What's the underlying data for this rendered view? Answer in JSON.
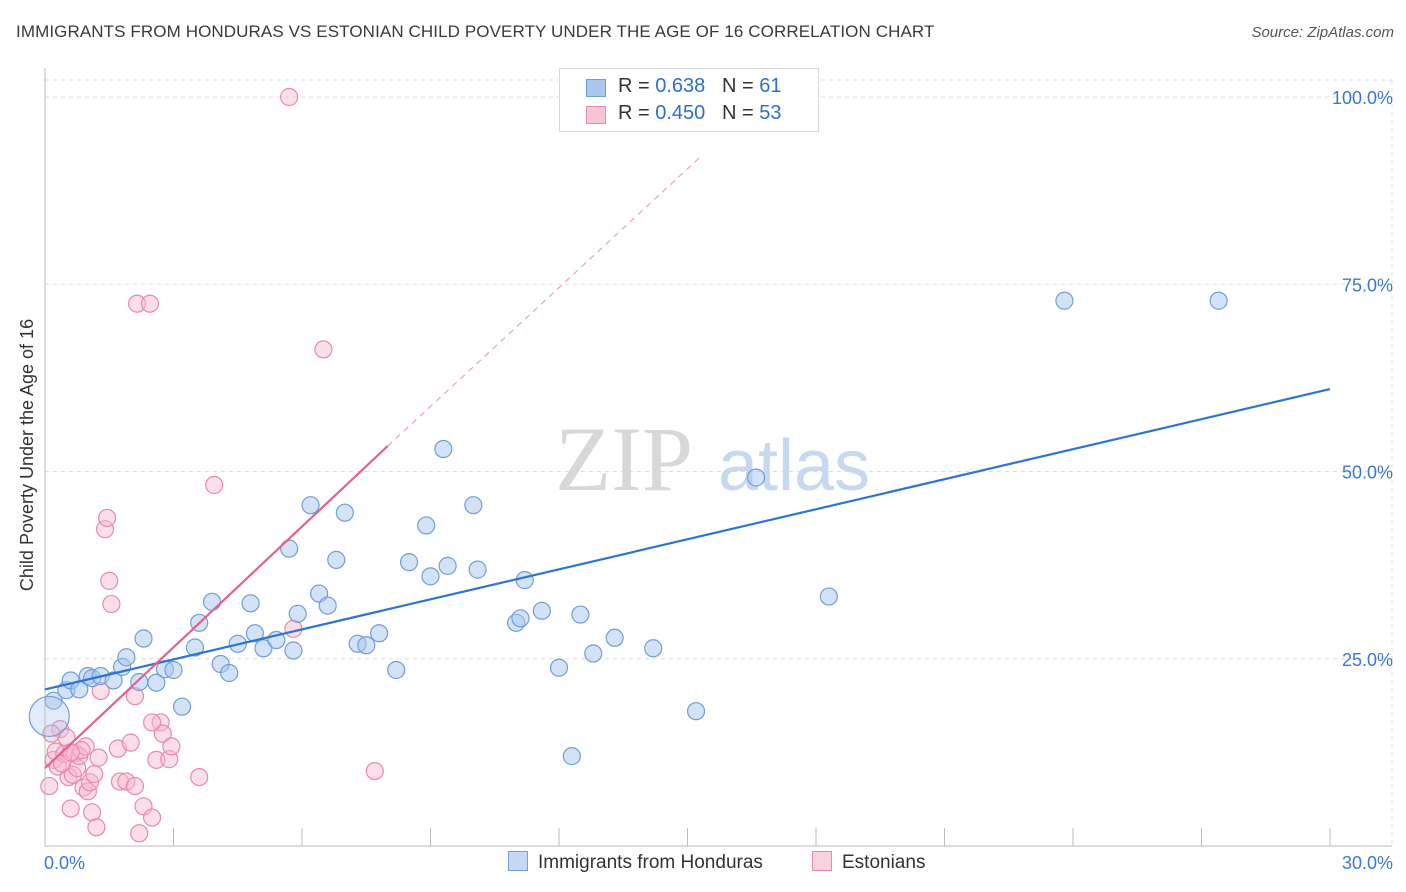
{
  "title": "IMMIGRANTS FROM HONDURAS VS ESTONIAN CHILD POVERTY UNDER THE AGE OF 16 CORRELATION CHART",
  "source": "Source: ZipAtlas.com",
  "watermark": {
    "zip": "ZIP",
    "atlas": "atlas"
  },
  "colors": {
    "blue_fill": "#aac6ee",
    "blue_stroke": "#6f9fd8",
    "blue_line": "#2e74d0",
    "pink_fill": "#f6b8cc",
    "pink_stroke": "#e98aa8",
    "pink_line": "#e4608e",
    "tick_label": "#3b78d6",
    "grid": "#dddddd"
  },
  "legend": {
    "rows": [
      {
        "r_label": "R = ",
        "r_value": "0.638",
        "n_label": "N = ",
        "n_value": "61"
      },
      {
        "r_label": "R = ",
        "r_value": "0.450",
        "n_label": "N = ",
        "n_value": "53"
      }
    ]
  },
  "bottom_legend": {
    "blue": "Immigrants from Honduras",
    "pink": "Estonians"
  },
  "chart_data": {
    "type": "scatter",
    "title": "IMMIGRANTS FROM HONDURAS VS ESTONIAN CHILD POVERTY UNDER THE AGE OF 16 CORRELATION CHART",
    "xlabel": "",
    "ylabel": "Child Poverty Under the Age of 16",
    "xlim": [
      0,
      30
    ],
    "ylim": [
      0,
      100
    ],
    "x_tick_labels": [
      "0.0%",
      "30.0%"
    ],
    "y_tick_values": [
      25,
      50,
      75,
      100
    ],
    "y_tick_labels": [
      "25.0%",
      "50.0%",
      "75.0%",
      "100.0%"
    ],
    "series": [
      {
        "name": "Immigrants from Honduras",
        "r": 0.638,
        "n": 61,
        "trend": {
          "x": [
            0,
            30
          ],
          "y": [
            20.9,
            61
          ]
        },
        "points": [
          [
            0.2,
            19.4
          ],
          [
            0.5,
            20.8
          ],
          [
            0.6,
            22.1
          ],
          [
            0.8,
            20.9
          ],
          [
            1.0,
            22.7
          ],
          [
            1.1,
            22.4
          ],
          [
            1.3,
            22.7
          ],
          [
            1.6,
            22.1
          ],
          [
            1.8,
            23.9
          ],
          [
            1.9,
            25.2
          ],
          [
            2.2,
            21.9
          ],
          [
            2.3,
            27.7
          ],
          [
            2.6,
            21.8
          ],
          [
            2.8,
            23.6
          ],
          [
            3.0,
            23.5
          ],
          [
            3.2,
            18.6
          ],
          [
            3.5,
            26.5
          ],
          [
            3.6,
            29.8
          ],
          [
            3.9,
            32.6
          ],
          [
            4.1,
            24.3
          ],
          [
            4.3,
            23.1
          ],
          [
            4.5,
            27.0
          ],
          [
            4.8,
            32.4
          ],
          [
            4.9,
            28.4
          ],
          [
            5.1,
            26.4
          ],
          [
            5.4,
            27.5
          ],
          [
            5.7,
            39.7
          ],
          [
            5.8,
            26.1
          ],
          [
            5.9,
            31.0
          ],
          [
            6.2,
            45.5
          ],
          [
            6.4,
            33.7
          ],
          [
            6.6,
            32.1
          ],
          [
            6.8,
            38.2
          ],
          [
            7.0,
            44.5
          ],
          [
            7.3,
            27.0
          ],
          [
            7.5,
            26.8
          ],
          [
            7.8,
            28.4
          ],
          [
            8.2,
            23.5
          ],
          [
            8.5,
            37.9
          ],
          [
            8.9,
            42.8
          ],
          [
            9.0,
            36.0
          ],
          [
            9.3,
            53.0
          ],
          [
            9.4,
            37.4
          ],
          [
            10.0,
            45.5
          ],
          [
            10.1,
            36.9
          ],
          [
            11.0,
            29.8
          ],
          [
            11.1,
            30.4
          ],
          [
            11.2,
            35.5
          ],
          [
            11.6,
            31.4
          ],
          [
            12.0,
            23.8
          ],
          [
            12.3,
            12.0
          ],
          [
            12.5,
            30.9
          ],
          [
            12.8,
            25.7
          ],
          [
            13.3,
            27.8
          ],
          [
            14.2,
            26.4
          ],
          [
            15.2,
            18.0
          ],
          [
            16.6,
            49.2
          ],
          [
            18.3,
            33.3
          ],
          [
            23.8,
            72.8
          ],
          [
            27.4,
            72.8
          ],
          [
            0.1,
            17.3
          ]
        ]
      },
      {
        "name": "Estonians",
        "r": 0.45,
        "n": 53,
        "trend": {
          "x": [
            0,
            8.0
          ],
          "y": [
            10.4,
            53.4
          ],
          "dash_to": [
            15.3,
            92
          ]
        },
        "points": [
          [
            0.1,
            8.0
          ],
          [
            0.2,
            11.5
          ],
          [
            0.25,
            12.6
          ],
          [
            0.3,
            10.6
          ],
          [
            0.35,
            15.6
          ],
          [
            0.45,
            12.3
          ],
          [
            0.5,
            14.5
          ],
          [
            0.55,
            9.2
          ],
          [
            0.6,
            5.0
          ],
          [
            0.65,
            9.5
          ],
          [
            0.7,
            12.4
          ],
          [
            0.75,
            10.4
          ],
          [
            0.8,
            12.0
          ],
          [
            0.9,
            7.8
          ],
          [
            0.95,
            13.3
          ],
          [
            1.0,
            7.3
          ],
          [
            1.05,
            8.5
          ],
          [
            1.1,
            4.5
          ],
          [
            1.15,
            9.6
          ],
          [
            1.2,
            2.5
          ],
          [
            1.3,
            20.7
          ],
          [
            1.4,
            42.3
          ],
          [
            1.45,
            43.8
          ],
          [
            1.5,
            35.4
          ],
          [
            1.55,
            32.3
          ],
          [
            1.7,
            13.0
          ],
          [
            1.75,
            8.6
          ],
          [
            1.9,
            8.6
          ],
          [
            2.0,
            13.8
          ],
          [
            2.1,
            20.0
          ],
          [
            2.1,
            8.0
          ],
          [
            2.15,
            72.4
          ],
          [
            2.2,
            1.7
          ],
          [
            2.3,
            5.3
          ],
          [
            2.45,
            72.4
          ],
          [
            2.5,
            3.8
          ],
          [
            2.6,
            11.5
          ],
          [
            2.7,
            16.5
          ],
          [
            2.75,
            15.0
          ],
          [
            2.9,
            11.6
          ],
          [
            2.95,
            13.3
          ],
          [
            3.6,
            9.2
          ],
          [
            3.95,
            48.2
          ],
          [
            5.7,
            100.0
          ],
          [
            5.8,
            29.0
          ],
          [
            6.5,
            66.3
          ],
          [
            7.7,
            10.0
          ],
          [
            0.4,
            11.0
          ],
          [
            0.85,
            12.8
          ],
          [
            1.25,
            11.8
          ],
          [
            0.15,
            15.0
          ],
          [
            0.6,
            12.5
          ],
          [
            2.5,
            16.5
          ]
        ]
      }
    ]
  },
  "plot_labels": {
    "ylabel": "Child Poverty Under the Age of 16",
    "x_left": "0.0%",
    "x_right": "30.0%"
  }
}
